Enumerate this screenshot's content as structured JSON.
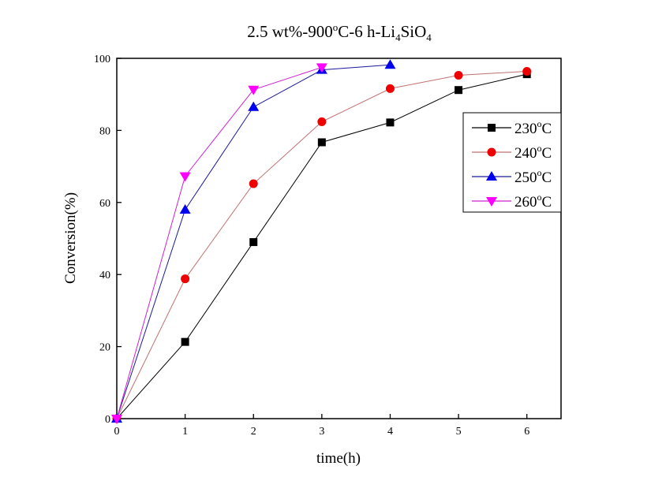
{
  "chart_data": {
    "type": "line",
    "title": {
      "main": "2.5 wt%-900",
      "sup": "o",
      "after": "C-6 h-Li",
      "sub1": "4",
      "mid": "SiO",
      "sub2": "4"
    },
    "xlabel": "time(h)",
    "ylabel": "Conversion(%)",
    "xlim": [
      0,
      6.5
    ],
    "ylim": [
      0,
      100
    ],
    "xticks": [
      0,
      1,
      2,
      3,
      4,
      5,
      6
    ],
    "yticks": [
      0,
      20,
      40,
      60,
      80,
      100
    ],
    "grid": false,
    "legend_position": "right",
    "series": [
      {
        "name": "230",
        "unit_sup": "o",
        "unit": "C",
        "color": "#000000",
        "marker_color": "#000000",
        "marker": "square",
        "x": [
          0,
          1,
          2,
          3,
          4,
          5,
          6
        ],
        "y": [
          0,
          21.3,
          49.0,
          76.7,
          82.2,
          91.2,
          95.6
        ]
      },
      {
        "name": "240",
        "unit_sup": "o",
        "unit": "C",
        "color": "#c07070",
        "marker_color": "#ee0000",
        "marker": "circle",
        "x": [
          0,
          1,
          2,
          3,
          4,
          5,
          6
        ],
        "y": [
          0,
          38.8,
          65.2,
          82.4,
          91.6,
          95.3,
          96.4
        ]
      },
      {
        "name": "250",
        "unit_sup": "o",
        "unit": "C",
        "color": "#1a1a9a",
        "marker_color": "#0000ee",
        "marker": "triangle-up",
        "x": [
          0,
          1,
          2,
          3,
          4
        ],
        "y": [
          0,
          58.0,
          86.5,
          96.8,
          98.2
        ]
      },
      {
        "name": "260",
        "unit_sup": "o",
        "unit": "C",
        "color": "#d020d0",
        "marker_color": "#ff00ff",
        "marker": "triangle-down",
        "x": [
          0,
          1,
          2,
          3
        ],
        "y": [
          0,
          67.3,
          91.3,
          97.5
        ]
      }
    ]
  }
}
